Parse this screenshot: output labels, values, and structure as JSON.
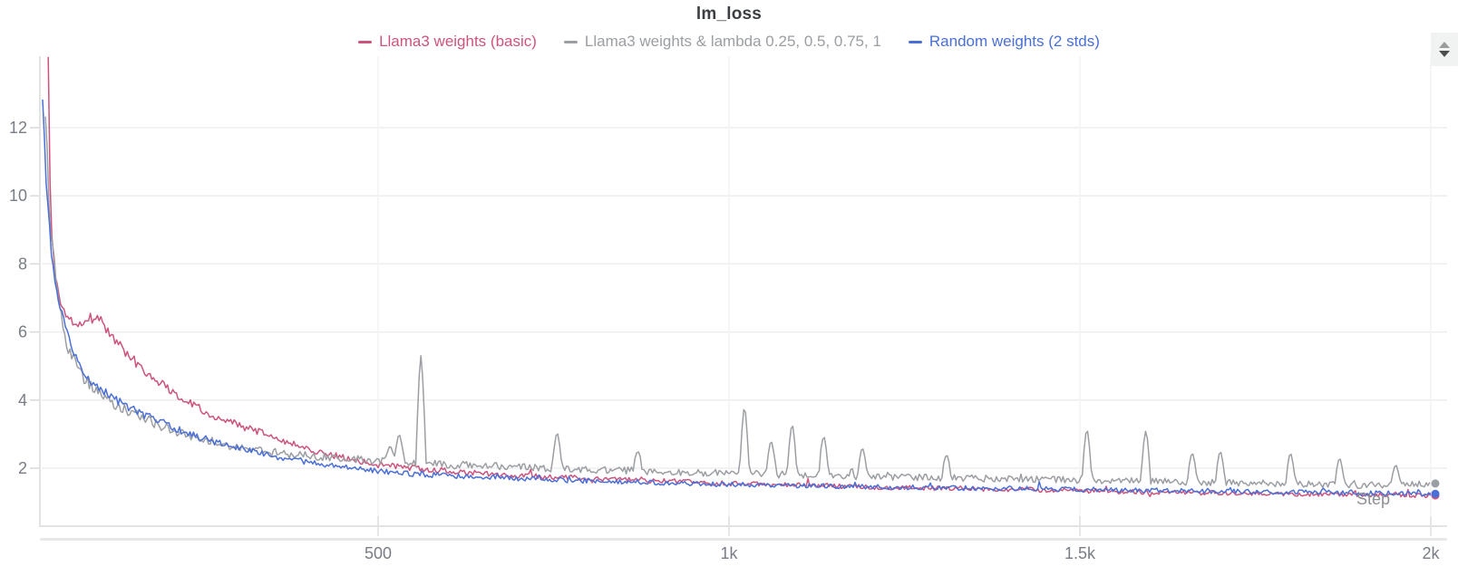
{
  "header": {
    "title": "lm_loss"
  },
  "axes": {
    "xlabel": "Step"
  },
  "controls": {
    "panel_stepper": "up-down-stepper"
  },
  "chart_data": {
    "type": "line",
    "title": "lm_loss",
    "xlabel": "Step",
    "legend_position": "top-center",
    "grid": true,
    "x_axis": {
      "range": [
        0,
        2020
      ],
      "ticks": [
        {
          "value": 500,
          "label": "500"
        },
        {
          "value": 1000,
          "label": "1k"
        },
        {
          "value": 1500,
          "label": "1.5k"
        },
        {
          "value": 2000,
          "label": "2k"
        }
      ]
    },
    "y_axis": {
      "range": [
        0.2,
        14.1
      ],
      "ticks": [
        2,
        4,
        6,
        8,
        10,
        12
      ]
    },
    "colors": {
      "pink": "#cc537e",
      "gray": "#9b9ea2",
      "blue": "#4a6fd6",
      "gridline": "#ededee",
      "axis_line": "#e2e3e4",
      "tick_label": "#797d86"
    },
    "series": [
      {
        "name": "Llama3 weights (basic)",
        "color": "#cc537e",
        "noise": 1.0,
        "end_value": 1.2,
        "trend": [
          [
            30,
            14.3
          ],
          [
            33,
            9.4
          ],
          [
            40,
            7.6
          ],
          [
            50,
            6.7
          ],
          [
            62,
            6.35
          ],
          [
            85,
            6.3
          ],
          [
            100,
            6.55
          ],
          [
            115,
            6.0
          ],
          [
            135,
            5.55
          ],
          [
            160,
            5.0
          ],
          [
            190,
            4.5
          ],
          [
            230,
            3.95
          ],
          [
            270,
            3.5
          ],
          [
            310,
            3.2
          ],
          [
            360,
            2.85
          ],
          [
            420,
            2.45
          ],
          [
            500,
            2.1
          ],
          [
            580,
            1.95
          ],
          [
            680,
            1.8
          ],
          [
            800,
            1.7
          ],
          [
            1000,
            1.55
          ],
          [
            1200,
            1.45
          ],
          [
            1400,
            1.38
          ],
          [
            1600,
            1.3
          ],
          [
            1800,
            1.25
          ],
          [
            2000,
            1.2
          ]
        ]
      },
      {
        "name": "Llama3 weights & lambda 0.25, 0.5, 0.75, 1",
        "color": "#9b9ea2",
        "noise": 1.3,
        "end_value": 1.55,
        "trend": [
          [
            26,
            12.5
          ],
          [
            31,
            9.8
          ],
          [
            38,
            8.0
          ],
          [
            47,
            6.5
          ],
          [
            58,
            5.5
          ],
          [
            75,
            4.8
          ],
          [
            95,
            4.3
          ],
          [
            120,
            3.95
          ],
          [
            150,
            3.6
          ],
          [
            190,
            3.25
          ],
          [
            240,
            2.9
          ],
          [
            300,
            2.6
          ],
          [
            380,
            2.4
          ],
          [
            480,
            2.25
          ],
          [
            600,
            2.1
          ],
          [
            750,
            2.0
          ],
          [
            900,
            1.9
          ],
          [
            1100,
            1.8
          ],
          [
            1300,
            1.72
          ],
          [
            1500,
            1.65
          ],
          [
            1700,
            1.58
          ],
          [
            1900,
            1.5
          ],
          [
            2000,
            1.55
          ]
        ],
        "spikes": [
          [
            517,
            2.65
          ],
          [
            530,
            3.0
          ],
          [
            561,
            5.3
          ],
          [
            755,
            3.05
          ],
          [
            870,
            2.5
          ],
          [
            1022,
            3.8
          ],
          [
            1060,
            2.8
          ],
          [
            1090,
            3.3
          ],
          [
            1135,
            2.95
          ],
          [
            1190,
            2.6
          ],
          [
            1310,
            2.4
          ],
          [
            1510,
            3.15
          ],
          [
            1594,
            3.1
          ],
          [
            1660,
            2.45
          ],
          [
            1700,
            2.5
          ],
          [
            1800,
            2.45
          ],
          [
            1870,
            2.3
          ],
          [
            1950,
            2.1
          ]
        ]
      },
      {
        "name": "Random weights (2 stds)",
        "color": "#4a6fd6",
        "noise": 1.0,
        "end_value": 1.25,
        "trend": [
          [
            22,
            13.05
          ],
          [
            27,
            10.5
          ],
          [
            33,
            8.6
          ],
          [
            42,
            7.2
          ],
          [
            58,
            5.9
          ],
          [
            72,
            5.1
          ],
          [
            90,
            4.55
          ],
          [
            115,
            4.15
          ],
          [
            145,
            3.8
          ],
          [
            180,
            3.45
          ],
          [
            230,
            3.0
          ],
          [
            280,
            2.7
          ],
          [
            340,
            2.4
          ],
          [
            420,
            2.1
          ],
          [
            500,
            1.9
          ],
          [
            600,
            1.78
          ],
          [
            720,
            1.68
          ],
          [
            850,
            1.6
          ],
          [
            1000,
            1.52
          ],
          [
            1200,
            1.45
          ],
          [
            1400,
            1.4
          ],
          [
            1600,
            1.35
          ],
          [
            1800,
            1.3
          ],
          [
            2000,
            1.25
          ]
        ]
      }
    ]
  }
}
